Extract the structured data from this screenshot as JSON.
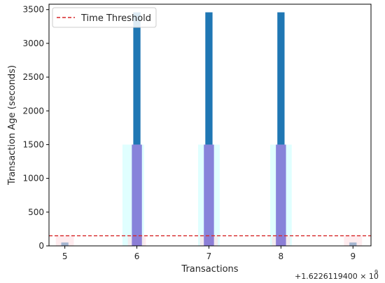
{
  "chart_data": {
    "type": "bar",
    "xlabel": "Transactions",
    "ylabel": "Transaction Age (seconds)",
    "x_offset_label": "+1.6226119400 × 10",
    "x_offset_exponent": "9",
    "xlim": [
      4.78,
      9.25
    ],
    "ylim": [
      0,
      3580
    ],
    "xticks": [
      5,
      6,
      7,
      8,
      9
    ],
    "yticks": [
      0,
      500,
      1000,
      1500,
      2000,
      2500,
      3000,
      3500
    ],
    "x_tick_labels": [
      "5",
      "6",
      "7",
      "8",
      "9"
    ],
    "y_tick_labels": [
      "0",
      "500",
      "1000",
      "1500",
      "2000",
      "2500",
      "3000",
      "3500"
    ],
    "series": [
      {
        "color": "#1f77b4",
        "points": [
          {
            "x": 5.0,
            "y": 50
          },
          {
            "x": 6.0,
            "y": 3460
          },
          {
            "x": 7.0,
            "y": 3460
          },
          {
            "x": 8.0,
            "y": 3460
          },
          {
            "x": 9.0,
            "y": 50
          }
        ]
      },
      {
        "color": "#e0ffff",
        "points": [
          {
            "x": 5.95,
            "y": 1500
          },
          {
            "x": 7.0,
            "y": 1500
          },
          {
            "x": 8.0,
            "y": 1500
          }
        ]
      },
      {
        "color": "#ffdfe5",
        "points": [
          {
            "x": 5.0,
            "y": 160
          },
          {
            "x": 6.0,
            "y": 160
          },
          {
            "x": 7.0,
            "y": 160
          },
          {
            "x": 8.0,
            "y": 160
          },
          {
            "x": 9.0,
            "y": 160
          }
        ]
      },
      {
        "color": "#6a5acd",
        "points": [
          {
            "x": 6.0,
            "y": 1500
          },
          {
            "x": 7.0,
            "y": 1500
          },
          {
            "x": 8.0,
            "y": 1500
          }
        ]
      }
    ],
    "threshold": {
      "name": "Time Threshold",
      "y": 150,
      "color": "#d62728",
      "style": "dashed"
    },
    "legend": {
      "position": "top-left",
      "entries": [
        "Time Threshold"
      ]
    },
    "grid": false
  }
}
